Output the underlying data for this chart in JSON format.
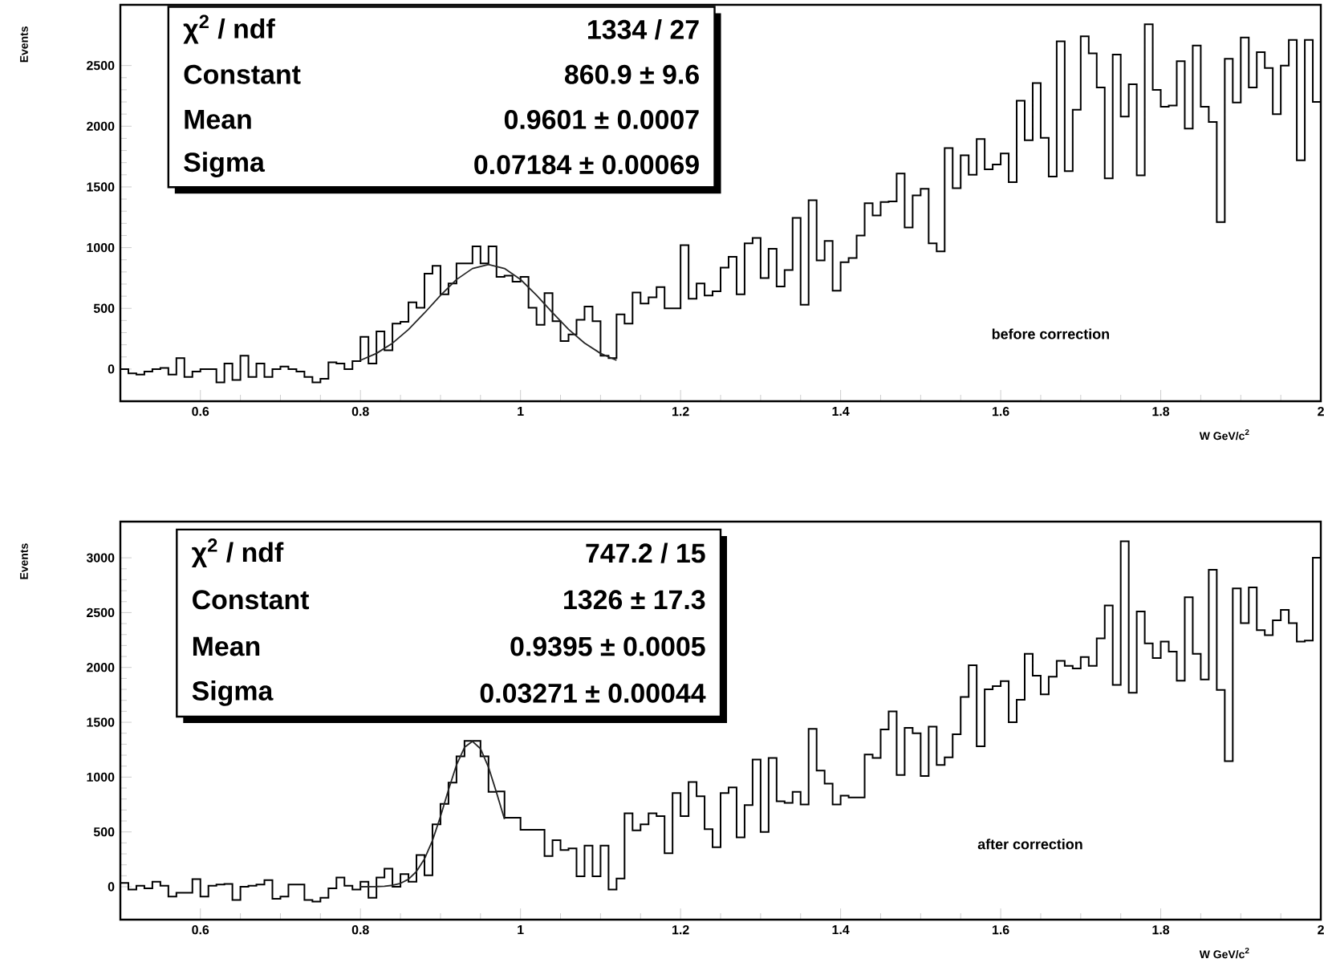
{
  "chart_data": [
    {
      "type": "histogram",
      "xlabel": "W   GeV/c$^{2}$",
      "ylabel": "Events",
      "xlim": [
        0.5,
        2.0
      ],
      "ylim": [
        -265,
        3000
      ],
      "xticks": [
        0.6,
        0.8,
        1,
        1.2,
        1.4,
        1.6,
        1.8,
        2
      ],
      "yticks": [
        0,
        500,
        1000,
        1500,
        2000,
        2500
      ],
      "bins": [
        0.5,
        0.51,
        0.52,
        0.53,
        0.54,
        0.55,
        0.56,
        0.57,
        0.58,
        0.59,
        0.6,
        0.61,
        0.62,
        0.63,
        0.64,
        0.65,
        0.66,
        0.67,
        0.68,
        0.69,
        0.7,
        0.71,
        0.72,
        0.73,
        0.74,
        0.75,
        0.76,
        0.77,
        0.78,
        0.79,
        0.8,
        0.81,
        0.82,
        0.83,
        0.84,
        0.85,
        0.86,
        0.87,
        0.88,
        0.89,
        0.9,
        0.91,
        0.92,
        0.93,
        0.94,
        0.95,
        0.96,
        0.97,
        0.98,
        0.99,
        1.0,
        1.01,
        1.02,
        1.03,
        1.04,
        1.05,
        1.06,
        1.07,
        1.08,
        1.09,
        1.1,
        1.11,
        1.12,
        1.13,
        1.14,
        1.15,
        1.16,
        1.17,
        1.18,
        1.19,
        1.2,
        1.21,
        1.22,
        1.23,
        1.24,
        1.25,
        1.26,
        1.27,
        1.28,
        1.29,
        1.3,
        1.31,
        1.32,
        1.33,
        1.34,
        1.35,
        1.36,
        1.37,
        1.38,
        1.39,
        1.4,
        1.41,
        1.42,
        1.43,
        1.44,
        1.45,
        1.46,
        1.47,
        1.48,
        1.49,
        1.5,
        1.51,
        1.52,
        1.53,
        1.54,
        1.55,
        1.56,
        1.57,
        1.58,
        1.59,
        1.6,
        1.61,
        1.62,
        1.63,
        1.64,
        1.65,
        1.66,
        1.67,
        1.68,
        1.69,
        1.7,
        1.71,
        1.72,
        1.73,
        1.74,
        1.75,
        1.76,
        1.77,
        1.78,
        1.79,
        1.8,
        1.81,
        1.82,
        1.83,
        1.84,
        1.85,
        1.86,
        1.87,
        1.88,
        1.89,
        1.9,
        1.91,
        1.92,
        1.93,
        1.94,
        1.95,
        1.96,
        1.97,
        1.98,
        1.99,
        2.0
      ],
      "series": [
        {
          "color": "#000000",
          "values": [
            0,
            -35,
            -45,
            -20,
            0,
            10,
            -45,
            90,
            -65,
            -20,
            0,
            0,
            -110,
            45,
            -90,
            110,
            -65,
            45,
            -65,
            0,
            20,
            0,
            -20,
            -65,
            -110,
            -80,
            55,
            45,
            0,
            65,
            265,
            45,
            310,
            155,
            375,
            390,
            550,
            505,
            785,
            850,
            615,
            705,
            870,
            870,
            1010,
            870,
            1010,
            760,
            770,
            720,
            760,
            505,
            365,
            625,
            395,
            230,
            285,
            405,
            515,
            395,
            110,
            90,
            450,
            375,
            630,
            540,
            590,
            675,
            500,
            500,
            1020,
            580,
            705,
            605,
            640,
            835,
            925,
            615,
            1035,
            1080,
            750,
            990,
            680,
            815,
            1245,
            530,
            1390,
            895,
            1055,
            645,
            880,
            915,
            1100,
            1365,
            1265,
            1375,
            1380,
            1610,
            1165,
            1430,
            1485,
            1035,
            970,
            1820,
            1490,
            1760,
            1600,
            1895,
            1645,
            1685,
            1775,
            1540,
            2210,
            1885,
            2355,
            1905,
            1585,
            2700,
            1630,
            2135,
            2740,
            2600,
            2320,
            1570,
            2590,
            2080,
            2345,
            1595,
            2840,
            2300,
            2160,
            2170,
            2535,
            1980,
            2665,
            2160,
            2035,
            1210,
            2555,
            2195,
            2730,
            2320,
            2610,
            2480,
            2100,
            2500,
            2710,
            1720,
            2710,
            2200
          ]
        },
        {
          "type": "line",
          "color": "#262626",
          "x": [
            0.8,
            0.82,
            0.84,
            0.86,
            0.88,
            0.9,
            0.92,
            0.94,
            0.96,
            0.98,
            1.0,
            1.02,
            1.04,
            1.06,
            1.08,
            1.1,
            1.12
          ],
          "values": [
            72,
            129,
            213,
            326,
            462,
            607,
            737,
            828,
            861,
            828,
            738,
            608,
            464,
            327,
            214,
            129,
            72
          ]
        }
      ],
      "annotations": [
        "χ$^{2}$ / ndf",
        "1334 / 27",
        "Constant",
        "860.9 ± 9.6",
        "Mean",
        "0.9601 ± 0.0007",
        "Sigma",
        "0.07184 ± 0.00069",
        "before correction"
      ]
    },
    {
      "type": "histogram",
      "xlabel": "W   GeV/c$^{2}$",
      "ylabel": "Events",
      "xlim": [
        0.5,
        2.0
      ],
      "ylim": [
        -300,
        3330
      ],
      "xticks": [
        0.6,
        0.8,
        1,
        1.2,
        1.4,
        1.6,
        1.8,
        2
      ],
      "yticks": [
        0,
        500,
        1000,
        1500,
        2000,
        2500,
        3000
      ],
      "bins": [
        0.5,
        0.51,
        0.52,
        0.53,
        0.54,
        0.55,
        0.56,
        0.57,
        0.58,
        0.59,
        0.6,
        0.61,
        0.62,
        0.63,
        0.64,
        0.65,
        0.66,
        0.67,
        0.68,
        0.69,
        0.7,
        0.71,
        0.72,
        0.73,
        0.74,
        0.75,
        0.76,
        0.77,
        0.78,
        0.79,
        0.8,
        0.81,
        0.82,
        0.83,
        0.84,
        0.85,
        0.86,
        0.87,
        0.88,
        0.89,
        0.9,
        0.91,
        0.92,
        0.93,
        0.94,
        0.95,
        0.96,
        0.97,
        0.98,
        0.99,
        1.0,
        1.01,
        1.02,
        1.03,
        1.04,
        1.05,
        1.06,
        1.07,
        1.08,
        1.09,
        1.1,
        1.11,
        1.12,
        1.13,
        1.14,
        1.15,
        1.16,
        1.17,
        1.18,
        1.19,
        1.2,
        1.21,
        1.22,
        1.23,
        1.24,
        1.25,
        1.26,
        1.27,
        1.28,
        1.29,
        1.3,
        1.31,
        1.32,
        1.33,
        1.34,
        1.35,
        1.36,
        1.37,
        1.38,
        1.39,
        1.4,
        1.41,
        1.42,
        1.43,
        1.44,
        1.45,
        1.46,
        1.47,
        1.48,
        1.49,
        1.5,
        1.51,
        1.52,
        1.53,
        1.54,
        1.55,
        1.56,
        1.57,
        1.58,
        1.59,
        1.6,
        1.61,
        1.62,
        1.63,
        1.64,
        1.65,
        1.66,
        1.67,
        1.68,
        1.69,
        1.7,
        1.71,
        1.72,
        1.73,
        1.74,
        1.75,
        1.76,
        1.77,
        1.78,
        1.79,
        1.8,
        1.81,
        1.82,
        1.83,
        1.84,
        1.85,
        1.86,
        1.87,
        1.88,
        1.89,
        1.9,
        1.91,
        1.92,
        1.93,
        1.94,
        1.95,
        1.96,
        1.97,
        1.98,
        1.99,
        2.0
      ],
      "series": [
        {
          "color": "#000000",
          "values": [
            35,
            -25,
            10,
            -15,
            45,
            10,
            -90,
            -55,
            -55,
            70,
            -90,
            10,
            20,
            25,
            -120,
            0,
            10,
            20,
            60,
            -110,
            -90,
            20,
            20,
            -120,
            -135,
            -100,
            -15,
            85,
            10,
            -25,
            45,
            -100,
            85,
            165,
            0,
            115,
            45,
            290,
            105,
            570,
            755,
            950,
            1190,
            1330,
            1330,
            1190,
            865,
            870,
            630,
            630,
            520,
            520,
            520,
            280,
            425,
            335,
            350,
            95,
            375,
            95,
            375,
            -25,
            75,
            670,
            515,
            570,
            670,
            645,
            305,
            855,
            645,
            955,
            825,
            525,
            360,
            855,
            905,
            450,
            745,
            1160,
            500,
            1175,
            780,
            765,
            865,
            750,
            1440,
            1060,
            940,
            750,
            830,
            815,
            815,
            1205,
            1175,
            1435,
            1600,
            1020,
            1450,
            1400,
            1010,
            1460,
            1110,
            1180,
            1390,
            1730,
            2020,
            1280,
            1800,
            1830,
            1875,
            1500,
            1705,
            2125,
            1925,
            1755,
            1915,
            2060,
            2015,
            1990,
            2095,
            2015,
            2265,
            2565,
            1840,
            3150,
            1770,
            2510,
            2220,
            2085,
            2235,
            2145,
            1880,
            2640,
            2125,
            1890,
            2890,
            1795,
            1145,
            2720,
            2405,
            2730,
            2340,
            2295,
            2430,
            2525,
            2405,
            2235,
            2245,
            3000
          ]
        },
        {
          "type": "line",
          "color": "#262626",
          "x": [
            0.8,
            0.82,
            0.83,
            0.84,
            0.85,
            0.86,
            0.87,
            0.88,
            0.89,
            0.9,
            0.91,
            0.92,
            0.93,
            0.94,
            0.95,
            0.96,
            0.97,
            0.98
          ],
          "values": [
            0,
            2,
            5,
            13,
            31,
            69,
            139,
            254,
            422,
            640,
            883,
            1110,
            1271,
            1326,
            1259,
            1090,
            859,
            616
          ]
        }
      ],
      "annotations": [
        "χ$^{2}$ / ndf",
        "747.2 / 15",
        "Constant",
        "1326 ± 17.3",
        "Mean",
        "0.9395 ± 0.0005",
        "Sigma",
        "0.03271 ± 0.00044",
        "after correction"
      ]
    }
  ]
}
